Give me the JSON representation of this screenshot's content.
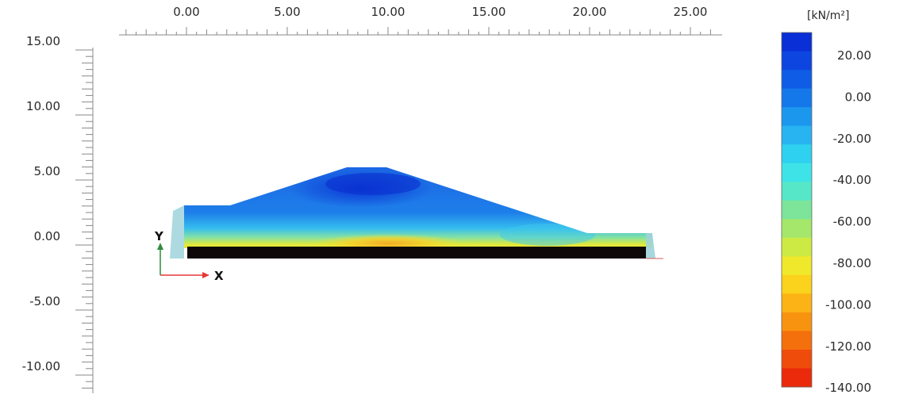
{
  "plot": {
    "x_axis": {
      "tick_labels": [
        "0.00",
        "5.00",
        "10.00",
        "15.00",
        "20.00",
        "25.00"
      ]
    },
    "y_axis": {
      "tick_labels": [
        "15.00",
        "10.00",
        "5.00",
        "0.00",
        "-5.00",
        "-10.00"
      ]
    },
    "origin_axes": {
      "x_label": "X",
      "y_label": "Y"
    }
  },
  "legend": {
    "unit": "[kN/m²]",
    "labels": [
      "20.00",
      "0.00",
      "-20.00",
      "-40.00",
      "-60.00",
      "-80.00",
      "-100.00",
      "-120.00",
      "-140.00"
    ],
    "colors": [
      "#0a2fd6",
      "#0d45e0",
      "#0f5ce6",
      "#1478ea",
      "#1c97ee",
      "#27b4f0",
      "#2fd1f0",
      "#3ee3e8",
      "#55e7c8",
      "#7ce59a",
      "#a5e76b",
      "#cdea44",
      "#f0e82a",
      "#fbd21c",
      "#fbb315",
      "#f8930f",
      "#f4700c",
      "#ef4b0b",
      "#ea2a0b"
    ]
  },
  "colors": {
    "dam_blue_dark": "#1443d8",
    "dam_blue": "#1c6ee8",
    "dam_cyan": "#39c6ee",
    "dam_yellow": "#f2e530",
    "foundation": "#0e0808",
    "x_arrow": "#e53935",
    "y_arrow": "#2e8b3c"
  }
}
